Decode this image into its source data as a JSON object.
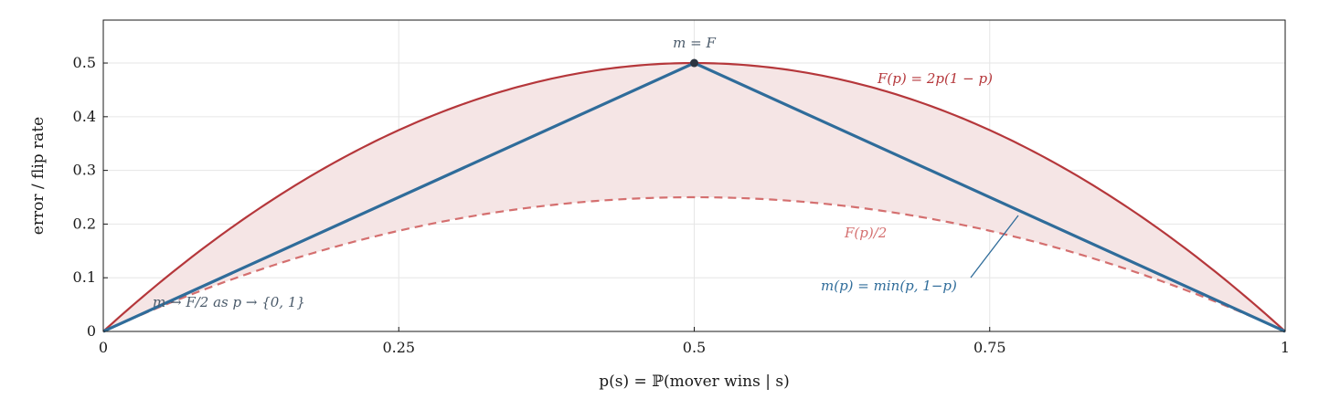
{
  "chart_data": {
    "type": "line",
    "xlabel": "p(s) = ℙ(mover wins | s)",
    "ylabel": "error / flip rate",
    "xlim": [
      0,
      1
    ],
    "ylim": [
      0,
      0.58
    ],
    "xticks": [
      0,
      0.25,
      0.5,
      0.75,
      1
    ],
    "xtick_labels": [
      "0",
      "0.25",
      "0.5",
      "0.75",
      "1"
    ],
    "yticks": [
      0,
      0.1,
      0.2,
      0.3,
      0.4,
      0.5
    ],
    "ytick_labels": [
      "0",
      "0.1",
      "0.2",
      "0.3",
      "0.4",
      "0.5"
    ],
    "grid": true,
    "colors": {
      "F": "#b5373b",
      "half": "#d46f6f",
      "m": "#2f6c9a",
      "fill": "#f5e5e5",
      "marker": "#2b3440",
      "note": "#4a5a6a"
    },
    "series": [
      {
        "key": "F",
        "formula": "2p(1-p)",
        "style": "solid"
      },
      {
        "key": "half",
        "formula": "p(1-p)",
        "style": "dashed"
      },
      {
        "key": "m",
        "formula": "min(p,1-p)",
        "style": "solid"
      }
    ],
    "highlight_point": {
      "x": 0.5,
      "y": 0.5
    },
    "annotations": {
      "peak": "m = F",
      "F_label": "F(p) = 2p(1 − p)",
      "half_label": "F(p)/2",
      "m_label": "m(p) = min(p, 1−p)",
      "limit_note": "m → F/2 as p → {0, 1}"
    }
  }
}
